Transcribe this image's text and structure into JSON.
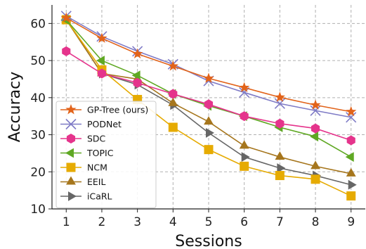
{
  "chart_data": {
    "type": "line",
    "title": "",
    "xlabel": "Sessions",
    "ylabel": "Accuracy",
    "x": [
      1,
      2,
      3,
      4,
      5,
      6,
      7,
      8,
      9
    ],
    "xlim": [
      0.6,
      9.4
    ],
    "ylim": [
      10,
      65
    ],
    "yticks": [
      10,
      20,
      30,
      40,
      50,
      60
    ],
    "grid": true,
    "legend_position": "lower-left",
    "series": [
      {
        "name": "GP-Tree (ours)",
        "color": "#e2631a",
        "marker": "star",
        "values": [
          61.5,
          56.0,
          51.8,
          48.5,
          45.2,
          42.7,
          40.1,
          38.0,
          36.2
        ]
      },
      {
        "name": "PODNet",
        "color": "#7f7bc6",
        "marker": "x",
        "values": [
          62.0,
          56.5,
          52.5,
          49.0,
          44.5,
          41.4,
          38.4,
          36.5,
          34.7
        ]
      },
      {
        "name": "SDC",
        "color": "#e5348c",
        "marker": "hexagon",
        "values": [
          52.5,
          46.5,
          44.0,
          41.0,
          38.2,
          35.0,
          33.0,
          31.7,
          28.5
        ]
      },
      {
        "name": "TOPIC",
        "color": "#5fa823",
        "marker": "triangle-left",
        "values": [
          61.0,
          50.0,
          46.0,
          41.0,
          37.8,
          35.0,
          32.0,
          29.5,
          24.0
        ]
      },
      {
        "name": "NCM",
        "color": "#e6ab02",
        "marker": "square",
        "values": [
          61.0,
          47.5,
          39.5,
          32.0,
          26.0,
          21.5,
          19.0,
          18.0,
          13.5
        ]
      },
      {
        "name": "EEIL",
        "color": "#a6761d",
        "marker": "triangle-up",
        "values": [
          61.0,
          46.5,
          45.0,
          38.5,
          33.5,
          27.0,
          24.0,
          21.5,
          19.5
        ]
      },
      {
        "name": "iCaRL",
        "color": "#666666",
        "marker": "triangle-right",
        "values": [
          61.0,
          46.5,
          43.5,
          38.0,
          30.5,
          24.0,
          21.0,
          19.0,
          16.5
        ]
      }
    ]
  }
}
